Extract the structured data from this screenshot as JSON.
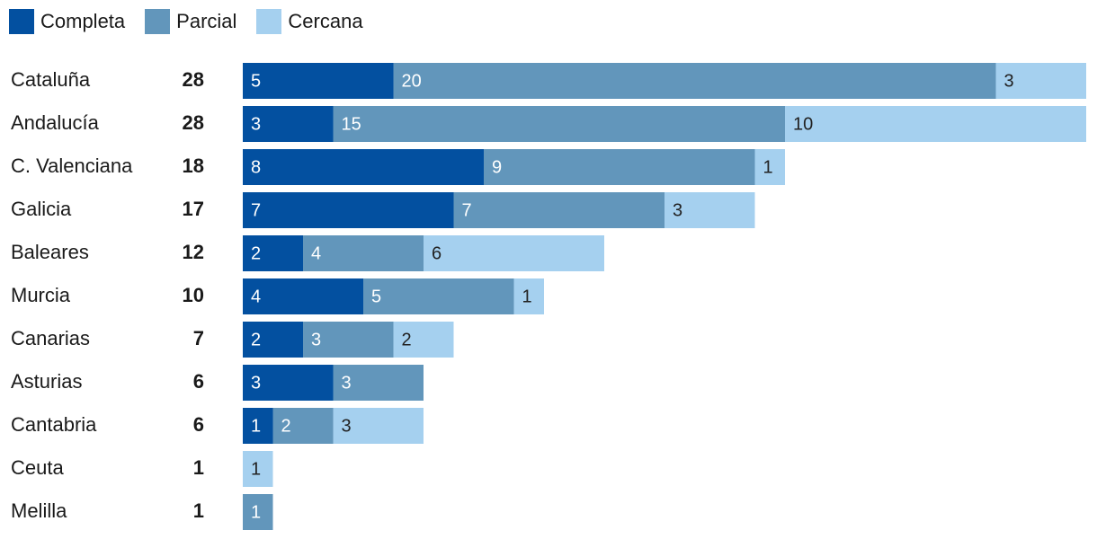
{
  "chart_data": {
    "type": "bar",
    "orientation": "horizontal",
    "stacked": true,
    "categories": [
      "Cataluña",
      "Andalucía",
      "C. Valenciana",
      "Galicia",
      "Baleares",
      "Murcia",
      "Canarias",
      "Asturias",
      "Cantabria",
      "Ceuta",
      "Melilla"
    ],
    "totals": [
      28,
      28,
      18,
      17,
      12,
      10,
      7,
      6,
      6,
      1,
      1
    ],
    "series": [
      {
        "name": "Completa",
        "color": "#0350a0",
        "label_color": "#ffffff",
        "values": [
          5,
          3,
          8,
          7,
          2,
          4,
          2,
          3,
          1,
          0,
          0
        ]
      },
      {
        "name": "Parcial",
        "color": "#6296bb",
        "label_color": "#ffffff",
        "values": [
          20,
          15,
          9,
          7,
          4,
          5,
          3,
          3,
          2,
          0,
          1
        ]
      },
      {
        "name": "Cercana",
        "color": "#a5d0ef",
        "label_color": "#222222",
        "values": [
          3,
          10,
          1,
          3,
          6,
          1,
          2,
          0,
          3,
          1,
          0
        ]
      }
    ],
    "xlim": [
      0,
      28
    ],
    "grid": false,
    "legend": "top-left"
  }
}
